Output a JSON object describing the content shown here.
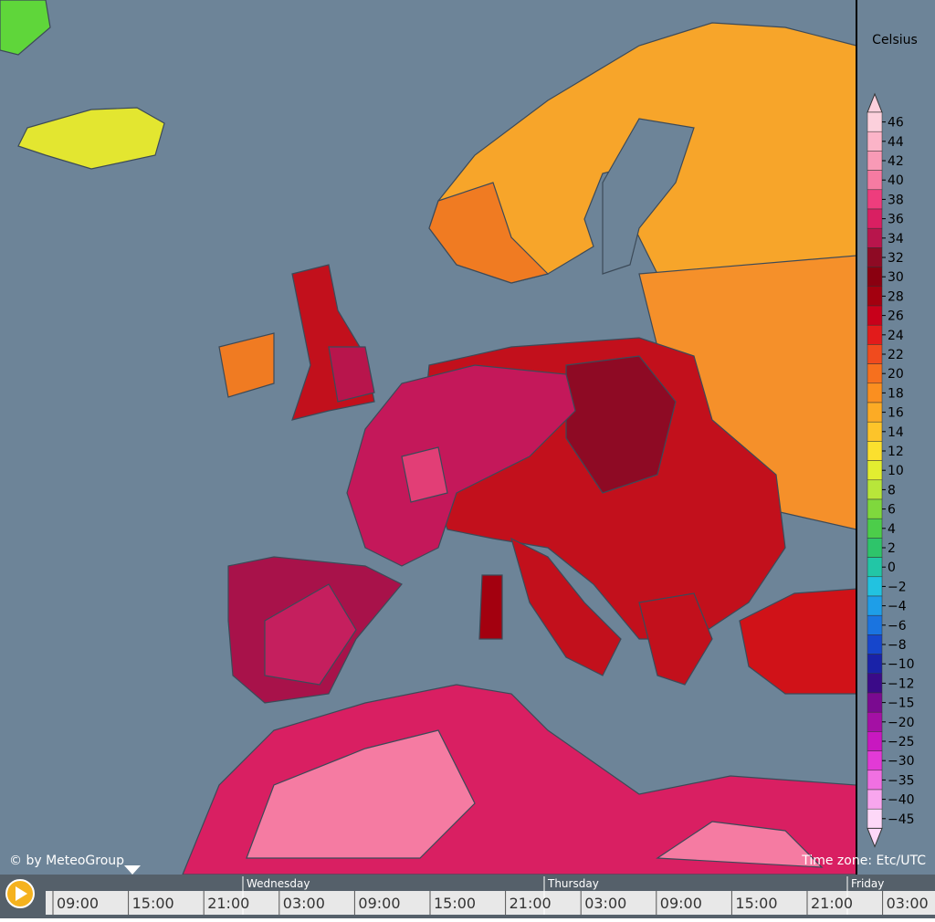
{
  "legend": {
    "title": "Celsius",
    "labels": [
      "46",
      "44",
      "42",
      "40",
      "38",
      "36",
      "34",
      "32",
      "30",
      "28",
      "26",
      "24",
      "22",
      "20",
      "18",
      "16",
      "14",
      "12",
      "10",
      "8",
      "6",
      "4",
      "2",
      "0",
      "−2",
      "−4",
      "−6",
      "−8",
      "−10",
      "−12",
      "−15",
      "−20",
      "−25",
      "−30",
      "−35",
      "−40",
      "−45"
    ],
    "colors": [
      "#fcd0dc",
      "#fbb4c8",
      "#f89ab6",
      "#f57ba2",
      "#ee3d7d",
      "#d91f62",
      "#b8154c",
      "#8e0a24",
      "#8a0010",
      "#a3000f",
      "#c8001a",
      "#e21b1b",
      "#f04b1e",
      "#f6701e",
      "#fa8f20",
      "#fcab25",
      "#fdc42a",
      "#fbe02e",
      "#e2ee30",
      "#b8e63a",
      "#7fd83d",
      "#4ccd4a",
      "#2ec46a",
      "#22c6a6",
      "#22c2e0",
      "#1e9ee8",
      "#1a74e0",
      "#1646cc",
      "#1922a8",
      "#3a0a88",
      "#7a0a90",
      "#a410a4",
      "#c818c0",
      "#e23ad6",
      "#f070e2",
      "#f8a6ee",
      "#fdd8f8"
    ]
  },
  "credit": "© by MeteoGroup",
  "timezone": "Time zone: Etc/UTC",
  "timeline": {
    "days": [
      "Wednesday",
      "Thursday",
      "Friday"
    ],
    "times": [
      "09:00",
      "15:00",
      "21:00",
      "03:00",
      "09:00",
      "15:00",
      "21:00",
      "03:00",
      "09:00",
      "15:00",
      "21:00",
      "03:00"
    ]
  }
}
